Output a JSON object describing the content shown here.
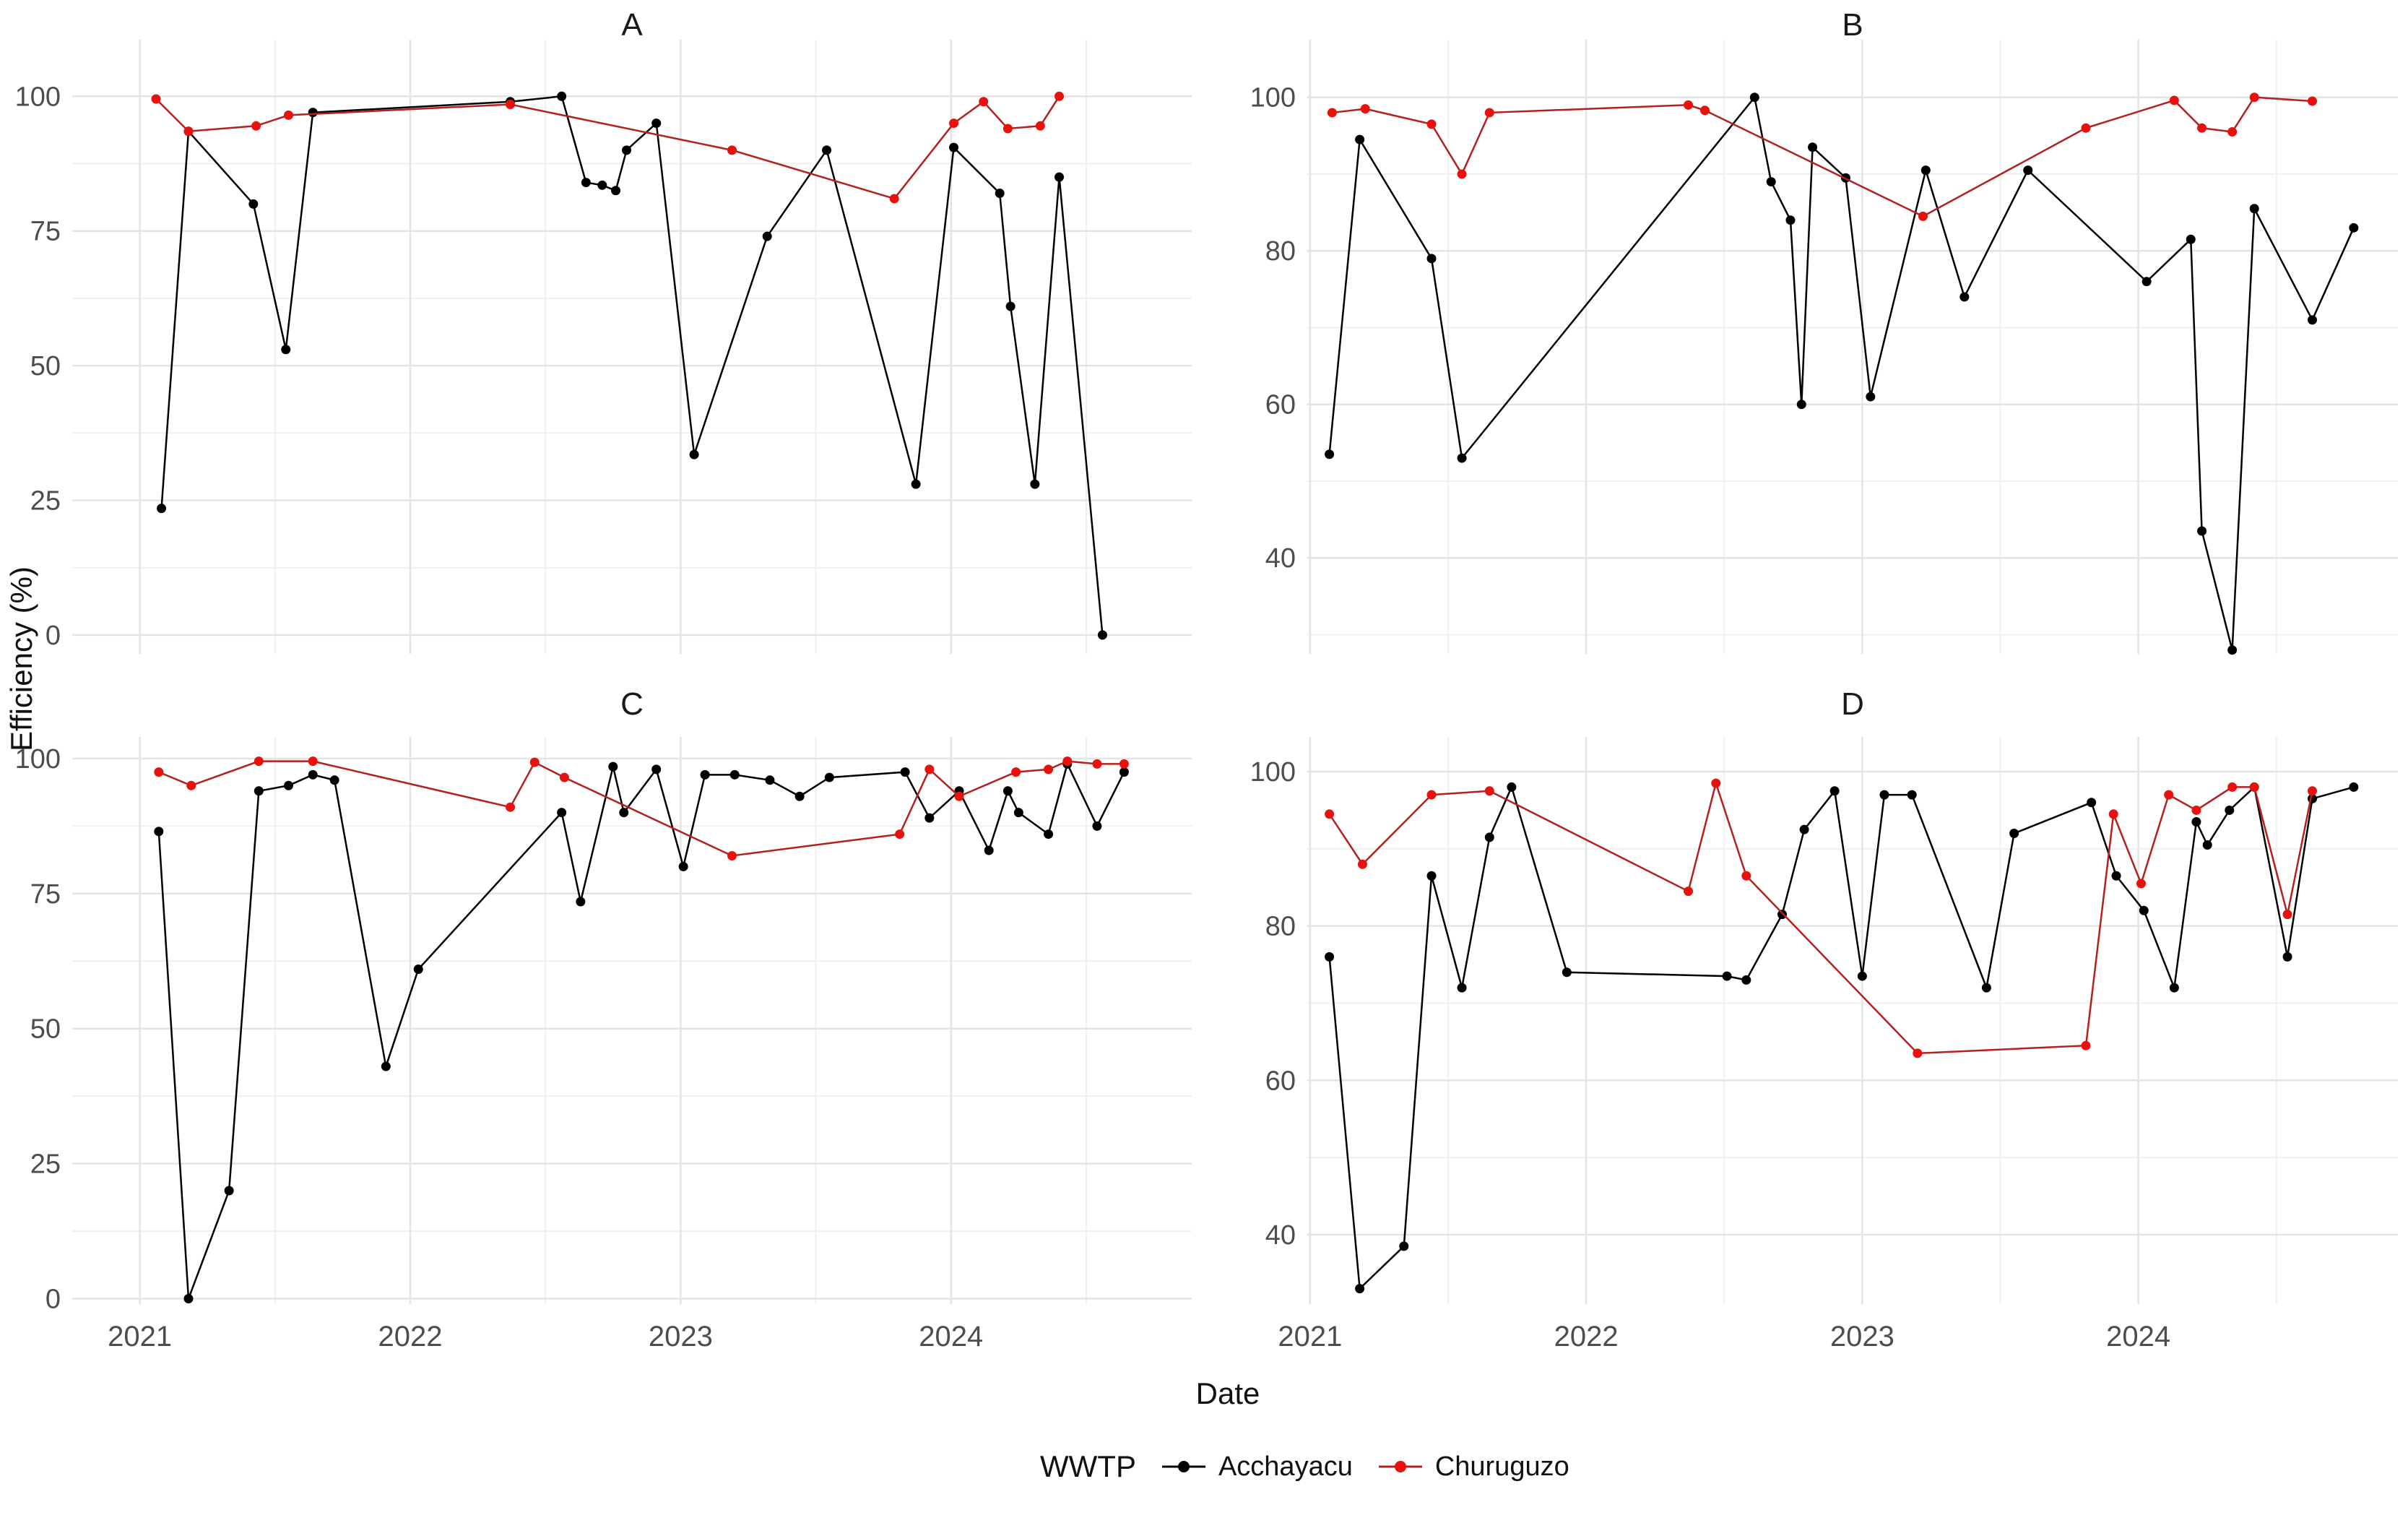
{
  "figure": {
    "x_axis_title": "Date",
    "y_axis_title": "Efficiency (%)",
    "legend": {
      "title": "WWTP",
      "items": [
        {
          "label": "Acchayacu",
          "line_color": "#000000",
          "point_color": "#000000"
        },
        {
          "label": "Churuguzo",
          "line_color": "#b32020",
          "point_color": "#e8120c"
        }
      ]
    },
    "colors": {
      "background": "#ffffff",
      "grid_major": "#e4e4e4",
      "grid_minor": "#f0f0f0",
      "tick_label": "#4d4d4d",
      "black_series": "#000000",
      "red_series": "#e8120c"
    }
  },
  "chart_data": [
    {
      "type": "line",
      "title": "A",
      "xlabel": "Date",
      "ylabel": "Efficiency (%)",
      "grid": true,
      "legend_position": "bottom",
      "xlim": [
        2020.75,
        2024.89
      ],
      "ylim": [
        -3.5,
        110.5
      ],
      "x_ticks": [
        2021,
        2022,
        2023,
        2024
      ],
      "x_minor": [
        2021.5,
        2022.5,
        2023.5,
        2024.5
      ],
      "x_tick_labels": [
        "2021",
        "2022",
        "2023",
        "2024"
      ],
      "show_x_tick_labels": false,
      "y_ticks": [
        0,
        25,
        50,
        75,
        100
      ],
      "y_minor": [
        12.5,
        37.5,
        62.5,
        87.5
      ],
      "series": [
        {
          "name": "Acchayacu",
          "x": [
            2021.08,
            2021.18,
            2021.42,
            2021.54,
            2021.64,
            2022.37,
            2022.56,
            2022.65,
            2022.71,
            2022.76,
            2022.8,
            2022.91,
            2023.05,
            2023.32,
            2023.54,
            2023.87,
            2024.01,
            2024.18,
            2024.22,
            2024.31,
            2024.4,
            2024.56
          ],
          "values": [
            23.5,
            93.5,
            80,
            53,
            97,
            99,
            100,
            84,
            83.5,
            82.5,
            90,
            95,
            33.5,
            74,
            90,
            28,
            90.5,
            82,
            61,
            28,
            85,
            0
          ]
        },
        {
          "name": "Churuguzo",
          "x": [
            2021.06,
            2021.18,
            2021.43,
            2021.55,
            2022.37,
            2023.19,
            2023.79,
            2024.01,
            2024.12,
            2024.21,
            2024.33,
            2024.4
          ],
          "values": [
            99.5,
            93.5,
            94.5,
            96.5,
            98.5,
            90,
            81,
            95,
            99,
            94,
            94.5,
            100
          ]
        }
      ]
    },
    {
      "type": "line",
      "title": "B",
      "xlabel": "Date",
      "ylabel": "Efficiency (%)",
      "grid": true,
      "legend_position": "bottom",
      "xlim": [
        2020.99,
        2024.94
      ],
      "ylim": [
        27.5,
        107.5
      ],
      "x_ticks": [
        2021,
        2022,
        2023,
        2024
      ],
      "x_minor": [
        2021.5,
        2022.5,
        2023.5,
        2024.5
      ],
      "x_tick_labels": [
        "2021",
        "2022",
        "2023",
        "2024"
      ],
      "show_x_tick_labels": false,
      "y_ticks": [
        40,
        60,
        80,
        100
      ],
      "y_minor": [
        30,
        50,
        70,
        90
      ],
      "series": [
        {
          "name": "Acchayacu",
          "x": [
            2021.07,
            2021.18,
            2021.44,
            2021.55,
            2022.61,
            2022.67,
            2022.74,
            2022.78,
            2022.82,
            2022.94,
            2023.03,
            2023.23,
            2023.37,
            2023.6,
            2024.03,
            2024.19,
            2024.23,
            2024.34,
            2024.42,
            2024.63,
            2024.78
          ],
          "values": [
            53.5,
            94.5,
            79,
            53,
            100,
            89,
            84,
            60,
            93.5,
            89.5,
            61,
            90.5,
            74,
            90.5,
            76,
            81.5,
            43.5,
            28,
            85.5,
            71,
            83
          ]
        },
        {
          "name": "Churuguzo",
          "x": [
            2021.08,
            2021.2,
            2021.44,
            2021.55,
            2021.65,
            2022.37,
            2022.43,
            2023.22,
            2023.81,
            2024.13,
            2024.23,
            2024.34,
            2024.42,
            2024.63
          ],
          "values": [
            98,
            98.5,
            96.5,
            90,
            98,
            99,
            98.3,
            84.5,
            96,
            99.6,
            96,
            95.5,
            100,
            99.5
          ]
        }
      ]
    },
    {
      "type": "line",
      "title": "C",
      "xlabel": "Date",
      "ylabel": "Efficiency (%)",
      "grid": true,
      "legend_position": "bottom",
      "xlim": [
        2020.75,
        2024.89
      ],
      "ylim": [
        -1,
        104
      ],
      "x_ticks": [
        2021,
        2022,
        2023,
        2024
      ],
      "x_minor": [
        2021.5,
        2022.5,
        2023.5,
        2024.5
      ],
      "x_tick_labels": [
        "2021",
        "2022",
        "2023",
        "2024"
      ],
      "show_x_tick_labels": true,
      "y_ticks": [
        0,
        25,
        50,
        75,
        100
      ],
      "y_minor": [
        12.5,
        37.5,
        62.5,
        87.5
      ],
      "series": [
        {
          "name": "Acchayacu",
          "x": [
            2021.07,
            2021.18,
            2021.33,
            2021.44,
            2021.55,
            2021.64,
            2021.72,
            2021.91,
            2022.03,
            2022.56,
            2022.63,
            2022.75,
            2022.79,
            2022.91,
            2023.01,
            2023.09,
            2023.2,
            2023.33,
            2023.44,
            2023.55,
            2023.83,
            2023.92,
            2024.03,
            2024.14,
            2024.21,
            2024.25,
            2024.36,
            2024.43,
            2024.54,
            2024.64
          ],
          "values": [
            86.5,
            0,
            20,
            94,
            95,
            97,
            96,
            43,
            61,
            90,
            73.5,
            98.5,
            90,
            98,
            80,
            97,
            97,
            96,
            93,
            96.5,
            97.5,
            89,
            94,
            83,
            94,
            90,
            86,
            99,
            87.5,
            97.5
          ]
        },
        {
          "name": "Churuguzo",
          "x": [
            2021.07,
            2021.19,
            2021.44,
            2021.64,
            2022.37,
            2022.46,
            2022.57,
            2023.19,
            2023.81,
            2023.92,
            2024.03,
            2024.24,
            2024.36,
            2024.43,
            2024.54,
            2024.64
          ],
          "values": [
            97.5,
            95,
            99.5,
            99.5,
            91,
            99.3,
            96.5,
            82,
            86,
            98,
            93,
            97.5,
            98,
            99.5,
            99,
            99
          ]
        }
      ]
    },
    {
      "type": "line",
      "title": "D",
      "xlabel": "Date",
      "ylabel": "Efficiency (%)",
      "grid": true,
      "legend_position": "bottom",
      "xlim": [
        2020.99,
        2024.94
      ],
      "ylim": [
        31,
        104.5
      ],
      "x_ticks": [
        2021,
        2022,
        2023,
        2024
      ],
      "x_minor": [
        2021.5,
        2022.5,
        2023.5,
        2024.5
      ],
      "x_tick_labels": [
        "2021",
        "2022",
        "2023",
        "2024"
      ],
      "show_x_tick_labels": true,
      "y_ticks": [
        40,
        60,
        80,
        100
      ],
      "y_minor": [
        30,
        50,
        70,
        90
      ],
      "series": [
        {
          "name": "Acchayacu",
          "x": [
            2021.07,
            2021.18,
            2021.34,
            2021.44,
            2021.55,
            2021.65,
            2021.73,
            2021.93,
            2022.51,
            2022.58,
            2022.71,
            2022.79,
            2022.9,
            2023.0,
            2023.08,
            2023.18,
            2023.45,
            2023.55,
            2023.83,
            2023.92,
            2024.02,
            2024.13,
            2024.21,
            2024.25,
            2024.33,
            2024.42,
            2024.54,
            2024.63,
            2024.78
          ],
          "values": [
            76,
            33,
            38.5,
            86.5,
            72,
            91.5,
            98,
            74,
            73.5,
            73,
            81.5,
            92.5,
            97.5,
            73.5,
            97,
            97,
            72,
            92,
            96,
            86.5,
            82,
            72,
            93.5,
            90.5,
            95,
            98,
            76,
            96.5,
            98
          ]
        },
        {
          "name": "Churuguzo",
          "x": [
            2021.07,
            2021.19,
            2021.44,
            2021.65,
            2022.37,
            2022.47,
            2022.58,
            2023.2,
            2023.81,
            2023.91,
            2024.01,
            2024.11,
            2024.21,
            2024.34,
            2024.42,
            2024.54,
            2024.63
          ],
          "values": [
            94.5,
            88,
            97,
            97.5,
            84.5,
            98.5,
            86.5,
            63.5,
            64.5,
            94.5,
            85.5,
            97,
            95,
            98,
            98,
            81.5,
            97.5
          ]
        }
      ]
    }
  ]
}
